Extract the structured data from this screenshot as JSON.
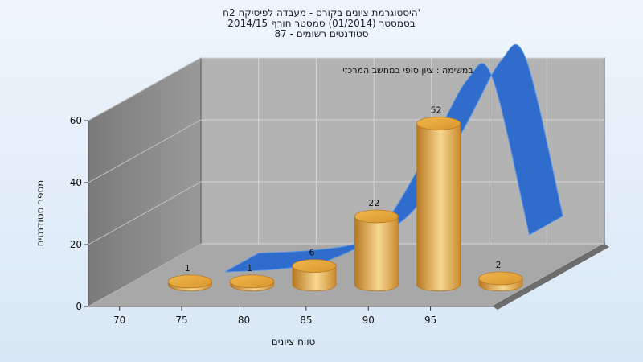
{
  "title_lines": [
    "היסטוגרמת ציונים בקורס - מעבדה לפיסיקה 2ח'",
    "בסמסטר  (01/2014)  סמסטר חורף 2014/15",
    "סטודנטים רשומים - 87"
  ],
  "subtitle": "במשימה : ציון סופי במחשב המרכזי",
  "chart_data": {
    "type": "bar",
    "style": "3d-cylinder-with-curve",
    "categories": [
      "70",
      "75",
      "80",
      "85",
      "90",
      "95"
    ],
    "x_tick_labels": [
      "70",
      "75",
      "80",
      "85",
      "90",
      "95"
    ],
    "values": [
      1,
      1,
      6,
      22,
      52,
      2
    ],
    "value_labels": [
      "1",
      "1",
      "6",
      "22",
      "52",
      "2"
    ],
    "curve": [
      {
        "x": 73.5,
        "y": 0
      },
      {
        "x": 78,
        "y": 1
      },
      {
        "x": 82,
        "y": 4
      },
      {
        "x": 86,
        "y": 14
      },
      {
        "x": 90,
        "y": 40
      },
      {
        "x": 93,
        "y": 62
      },
      {
        "x": 95,
        "y": 63
      },
      {
        "x": 98,
        "y": 12
      }
    ],
    "ylim": [
      0,
      60
    ],
    "y_ticks": [
      0,
      20,
      40,
      60
    ],
    "xlabel": "טווח ציונים",
    "ylabel": "מספר סטודנטים",
    "grid": true,
    "colors": {
      "bar": "#e8a940",
      "bar_dark": "#b87822",
      "bar_light": "#f8d890",
      "curve": "#2f6ccc",
      "curve_edge": "#5b95e6",
      "back_wall": "#b3b3b3",
      "left_wall": "#8a8a8a",
      "floor": "#a8a8a8"
    }
  }
}
